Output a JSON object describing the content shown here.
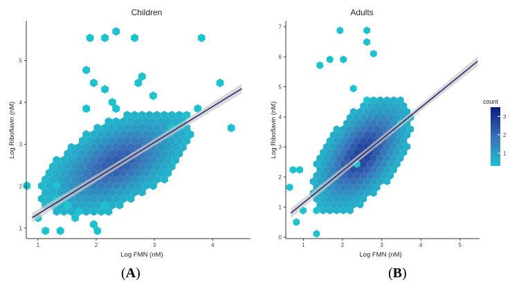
{
  "captions": [
    "A",
    "B"
  ],
  "legend": {
    "title": "count",
    "ticks": [
      1,
      2,
      3
    ],
    "range": [
      0.3,
      3.5
    ]
  },
  "colors": {
    "low": "#1ec2cf",
    "mid": "#3a6fb8",
    "high": "#0b1a80",
    "fit": "#2e2a6e",
    "band": "#c9c9c9"
  },
  "chart_data": [
    {
      "type": "hexbin",
      "title": "Children",
      "xlabel": "Log FMN (nM)",
      "ylabel": "Log Riboflavin (nM)",
      "xlim": [
        0.8,
        4.65
      ],
      "ylim": [
        0.75,
        5.95
      ],
      "xticks": [
        1,
        2,
        3,
        4
      ],
      "yticks": [
        1,
        2,
        3,
        4,
        5
      ],
      "grid": false,
      "center": {
        "x": 2.35,
        "y": 2.55
      },
      "density_scale": 0.62,
      "fit_line": {
        "x": [
          0.9,
          4.5
        ],
        "y": [
          1.25,
          4.33
        ]
      },
      "outliers": [
        [
          1.15,
          5.6
        ],
        [
          1.35,
          5.6
        ],
        [
          1.5,
          5.7
        ],
        [
          1.9,
          5.6
        ],
        [
          1.95,
          4.6
        ],
        [
          1.88,
          4.4
        ],
        [
          1.0,
          4.8
        ],
        [
          1.0,
          3.9
        ],
        [
          1.3,
          4.3
        ],
        [
          1.1,
          4.4
        ],
        [
          2.2,
          4.1
        ],
        [
          0.05,
          2.05
        ],
        [
          -0.25,
          2.9
        ],
        [
          0.18,
          1.25
        ],
        [
          0.3,
          0.98
        ],
        [
          0.6,
          0.98
        ],
        [
          0.9,
          1.25
        ],
        [
          1.1,
          1.05
        ],
        [
          1.2,
          0.88
        ],
        [
          2.5,
          3.35
        ],
        [
          3.0,
          5.6
        ],
        [
          2.9,
          3.8
        ],
        [
          3.3,
          4.4
        ],
        [
          3.5,
          3.35
        ],
        [
          2.7,
          3.75
        ],
        [
          0.58,
          2.0
        ],
        [
          0.48,
          1.75
        ],
        [
          0.72,
          1.52
        ],
        [
          0.85,
          1.45
        ],
        [
          1.35,
          1.5
        ],
        [
          1.5,
          4.0
        ],
        [
          1.6,
          3.8
        ]
      ]
    },
    {
      "type": "hexbin",
      "title": "Adults",
      "xlabel": "Log FMN (nM)",
      "ylabel": "Log Riboflavin (nM)",
      "xlim": [
        0.55,
        5.5
      ],
      "ylim": [
        -0.05,
        7.2
      ],
      "xticks": [
        1,
        2,
        3,
        4,
        5
      ],
      "yticks": [
        0,
        1,
        2,
        3,
        4,
        5,
        6,
        7
      ],
      "grid": false,
      "center": {
        "x": 2.5,
        "y": 2.75
      },
      "density_scale": 0.78,
      "fit_line": {
        "x": [
          0.68,
          5.45
        ],
        "y": [
          0.8,
          5.85
        ]
      },
      "outliers": [
        [
          -0.1,
          2.3
        ],
        [
          0.05,
          2.15
        ],
        [
          -0.2,
          1.75
        ],
        [
          0.0,
          0.45
        ],
        [
          0.2,
          0.8
        ],
        [
          0.48,
          0.85
        ],
        [
          0.6,
          0.2
        ],
        [
          1.1,
          6.9
        ],
        [
          1.8,
          6.9
        ],
        [
          2.75,
          3.85
        ],
        [
          1.5,
          2.35
        ],
        [
          1.75,
          6.55
        ],
        [
          2.0,
          6.2
        ],
        [
          1.55,
          5.0
        ],
        [
          1.8,
          4.55
        ],
        [
          -0.5,
          4.5
        ],
        [
          0.7,
          5.8
        ],
        [
          0.95,
          6.0
        ],
        [
          1.3,
          5.9
        ]
      ]
    }
  ]
}
